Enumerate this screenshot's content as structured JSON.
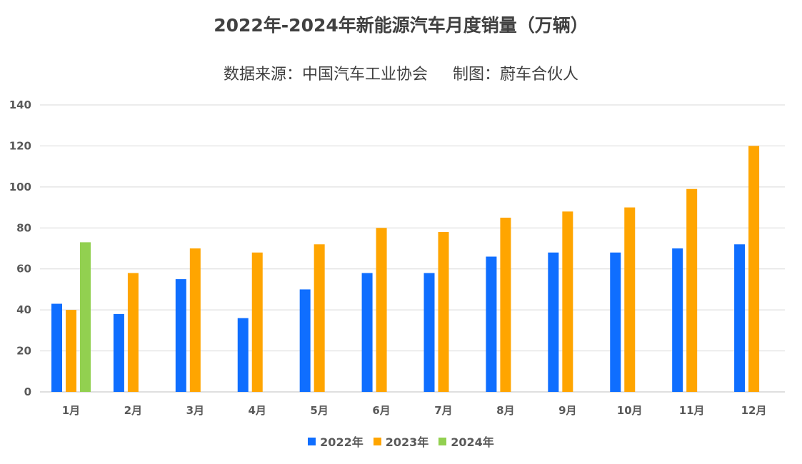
{
  "chart_data": {
    "type": "bar",
    "title": "2022年-2024年新能源汽车月度销量（万辆）",
    "subtitle": "数据来源：中国汽车工业协会     制图：蔚车合伙人",
    "categories": [
      "1月",
      "2月",
      "3月",
      "4月",
      "5月",
      "6月",
      "7月",
      "8月",
      "9月",
      "10月",
      "11月",
      "12月"
    ],
    "series": [
      {
        "name": "2022年",
        "color": "#0F6EFF",
        "values": [
          43,
          38,
          55,
          36,
          50,
          58,
          58,
          66,
          68,
          68,
          70,
          72
        ]
      },
      {
        "name": "2023年",
        "color": "#FFA500",
        "values": [
          40,
          58,
          70,
          68,
          72,
          80,
          78,
          85,
          88,
          90,
          99,
          120
        ]
      },
      {
        "name": "2024年",
        "color": "#92D050",
        "values": [
          73,
          null,
          null,
          null,
          null,
          null,
          null,
          null,
          null,
          null,
          null,
          null
        ]
      }
    ],
    "ylim": [
      0,
      140
    ],
    "yticks": [
      0,
      20,
      40,
      60,
      80,
      100,
      120,
      140
    ],
    "xlabel": "",
    "ylabel": "",
    "grid": true,
    "legend_position": "bottom"
  }
}
